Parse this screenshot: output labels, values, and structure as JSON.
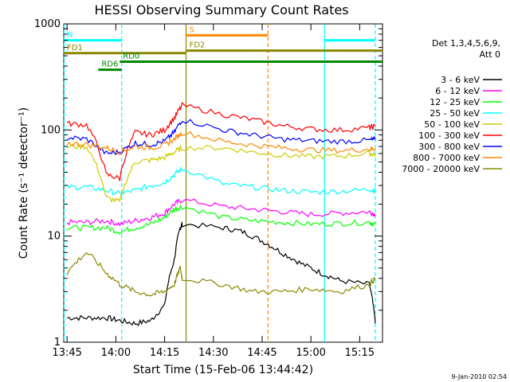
{
  "chart_data": {
    "type": "line",
    "title": "HESSI Observing Summary Count Rates",
    "xlabel": "Start Time (15-Feb-06 13:44:42)",
    "ylabel": "Count Rate (s⁻¹ detector⁻¹)",
    "yscale": "log",
    "ylim": [
      1,
      1000
    ],
    "xlim_minutes": [
      13.733,
      15.367
    ],
    "x_ticks": [
      "13:45",
      "14:00",
      "14:15",
      "14:30",
      "14:45",
      "15:00",
      "15:15"
    ],
    "y_ticks": [
      "1",
      "10",
      "100",
      "1000"
    ],
    "legend_header": [
      "Det 1,3,4,5,6,9,",
      "Att 0"
    ],
    "footer_date": "9-Jan-2010 02:54",
    "series": [
      {
        "name": "3 - 6 keV",
        "color": "#000000",
        "points": [
          [
            13.75,
            1.7
          ],
          [
            13.85,
            1.7
          ],
          [
            13.95,
            1.7
          ],
          [
            14.02,
            1.6
          ],
          [
            14.1,
            1.5
          ],
          [
            14.18,
            1.6
          ],
          [
            14.25,
            2.2
          ],
          [
            14.3,
            6
          ],
          [
            14.33,
            12
          ],
          [
            14.34,
            13
          ],
          [
            14.55,
            12
          ],
          [
            14.65,
            11
          ],
          [
            14.75,
            9
          ],
          [
            14.85,
            7
          ],
          [
            14.95,
            5.5
          ],
          [
            15.05,
            4.5
          ],
          [
            15.15,
            3.8
          ],
          [
            15.3,
            3.5
          ],
          [
            15.33,
            1.5
          ]
        ]
      },
      {
        "name": "6 - 12 keV",
        "color": "#ff00ff",
        "points": [
          [
            13.75,
            13.5
          ],
          [
            13.85,
            13.5
          ],
          [
            13.95,
            14
          ],
          [
            14.02,
            13
          ],
          [
            14.1,
            14
          ],
          [
            14.18,
            15
          ],
          [
            14.25,
            16.5
          ],
          [
            14.3,
            20
          ],
          [
            14.34,
            22
          ],
          [
            14.55,
            19
          ],
          [
            14.7,
            18
          ],
          [
            14.85,
            17
          ],
          [
            15.0,
            16
          ],
          [
            15.15,
            16.5
          ],
          [
            15.3,
            17
          ],
          [
            15.33,
            16
          ]
        ]
      },
      {
        "name": "12 - 25 keV",
        "color": "#00ff00",
        "points": [
          [
            13.75,
            12
          ],
          [
            13.85,
            12
          ],
          [
            13.95,
            12
          ],
          [
            14.02,
            11
          ],
          [
            14.1,
            12
          ],
          [
            14.18,
            13
          ],
          [
            14.25,
            15
          ],
          [
            14.3,
            18
          ],
          [
            14.34,
            19
          ],
          [
            14.55,
            15
          ],
          [
            14.7,
            14
          ],
          [
            14.85,
            13.5
          ],
          [
            15.0,
            13
          ],
          [
            15.15,
            13.2
          ],
          [
            15.3,
            13.5
          ],
          [
            15.33,
            13
          ]
        ]
      },
      {
        "name": "25 - 50 keV",
        "color": "#00ffff",
        "points": [
          [
            13.75,
            29
          ],
          [
            13.85,
            29
          ],
          [
            13.95,
            27
          ],
          [
            14.02,
            25
          ],
          [
            14.1,
            27
          ],
          [
            14.18,
            30
          ],
          [
            14.25,
            32
          ],
          [
            14.3,
            38
          ],
          [
            14.34,
            43
          ],
          [
            14.55,
            31
          ],
          [
            14.7,
            29
          ],
          [
            14.85,
            27
          ],
          [
            15.0,
            26
          ],
          [
            15.15,
            26.5
          ],
          [
            15.3,
            27.5
          ],
          [
            15.33,
            27
          ]
        ]
      },
      {
        "name": "50 - 100 keV",
        "color": "#cccc00",
        "points": [
          [
            13.75,
            70
          ],
          [
            13.85,
            70
          ],
          [
            13.95,
            23
          ],
          [
            14.02,
            21
          ],
          [
            14.1,
            50
          ],
          [
            14.18,
            52
          ],
          [
            14.25,
            55
          ],
          [
            14.3,
            62
          ],
          [
            14.34,
            68
          ],
          [
            14.55,
            68
          ],
          [
            14.7,
            62
          ],
          [
            14.85,
            58
          ],
          [
            15.0,
            56
          ],
          [
            15.15,
            57
          ],
          [
            15.3,
            60
          ],
          [
            15.33,
            59
          ]
        ]
      },
      {
        "name": "100 - 300 keV",
        "color": "#ff0000",
        "points": [
          [
            13.75,
            115
          ],
          [
            13.85,
            112
          ],
          [
            13.95,
            38
          ],
          [
            14.02,
            35
          ],
          [
            14.1,
            95
          ],
          [
            14.18,
            90
          ],
          [
            14.25,
            100
          ],
          [
            14.3,
            130
          ],
          [
            14.34,
            170
          ],
          [
            14.55,
            140
          ],
          [
            14.7,
            125
          ],
          [
            14.85,
            110
          ],
          [
            15.0,
            102
          ],
          [
            15.15,
            100
          ],
          [
            15.3,
            105
          ],
          [
            15.33,
            108
          ]
        ]
      },
      {
        "name": "300 - 800 keV",
        "color": "#0000ff",
        "points": [
          [
            13.75,
            85
          ],
          [
            13.85,
            82
          ],
          [
            13.95,
            60
          ],
          [
            14.02,
            62
          ],
          [
            14.1,
            75
          ],
          [
            14.18,
            73
          ],
          [
            14.25,
            78
          ],
          [
            14.3,
            95
          ],
          [
            14.34,
            125
          ],
          [
            14.55,
            100
          ],
          [
            14.7,
            90
          ],
          [
            14.85,
            82
          ],
          [
            15.0,
            79
          ],
          [
            15.15,
            78
          ],
          [
            15.3,
            80
          ],
          [
            15.33,
            81
          ]
        ]
      },
      {
        "name": "800 - 7000 keV",
        "color": "#ff8800",
        "points": [
          [
            13.75,
            75
          ],
          [
            13.85,
            73
          ],
          [
            13.95,
            68
          ],
          [
            14.02,
            62
          ],
          [
            14.1,
            70
          ],
          [
            14.18,
            68
          ],
          [
            14.25,
            72
          ],
          [
            14.3,
            82
          ],
          [
            14.34,
            95
          ],
          [
            14.55,
            78
          ],
          [
            14.7,
            72
          ],
          [
            14.85,
            68
          ],
          [
            15.0,
            65
          ],
          [
            15.15,
            64
          ],
          [
            15.3,
            66
          ],
          [
            15.33,
            67
          ]
        ]
      },
      {
        "name": "7000 - 20000 keV",
        "color": "#888800",
        "points": [
          [
            13.75,
            4.5
          ],
          [
            13.85,
            7
          ],
          [
            13.95,
            4.5
          ],
          [
            14.02,
            3.5
          ],
          [
            14.1,
            3
          ],
          [
            14.18,
            2.8
          ],
          [
            14.25,
            3
          ],
          [
            14.3,
            3.5
          ],
          [
            14.33,
            5
          ],
          [
            14.34,
            4
          ],
          [
            14.55,
            3.5
          ],
          [
            14.7,
            3
          ],
          [
            14.85,
            3
          ],
          [
            15.0,
            3.2
          ],
          [
            15.15,
            3
          ],
          [
            15.3,
            3.5
          ],
          [
            15.33,
            4
          ]
        ]
      }
    ],
    "status_bars": [
      {
        "label": "N",
        "color": "#00ffff",
        "y": 700,
        "segments": [
          [
            13.733,
            14.03
          ],
          [
            15.07,
            15.33
          ]
        ]
      },
      {
        "label": "S",
        "color": "#ff8800",
        "y": 780,
        "segments": [
          [
            14.36,
            14.78
          ]
        ]
      },
      {
        "label": "FD1",
        "color": "#888800",
        "y": 530,
        "segments": [
          [
            13.733,
            14.36
          ]
        ]
      },
      {
        "label": "FD2",
        "color": "#888800",
        "y": 560,
        "segments": [
          [
            14.36,
            15.367
          ]
        ]
      },
      {
        "label": "RD0",
        "color": "#008800",
        "y": 440,
        "segments": [
          [
            14.02,
            15.367
          ]
        ]
      },
      {
        "label": "RD6",
        "color": "#008800",
        "y": 370,
        "segments": [
          [
            13.91,
            14.03
          ]
        ]
      }
    ],
    "vertical_markers": [
      {
        "x": 13.735,
        "color": "#00ffff",
        "style": "dashed"
      },
      {
        "x": 14.03,
        "color": "#00ffff",
        "style": "dashed"
      },
      {
        "x": 14.36,
        "color": "#888800",
        "style": "solid"
      },
      {
        "x": 14.78,
        "color": "#ff8800",
        "style": "dashed"
      },
      {
        "x": 15.07,
        "color": "#00ffff",
        "style": "solid"
      },
      {
        "x": 15.33,
        "color": "#00ffff",
        "style": "dashed"
      }
    ]
  }
}
